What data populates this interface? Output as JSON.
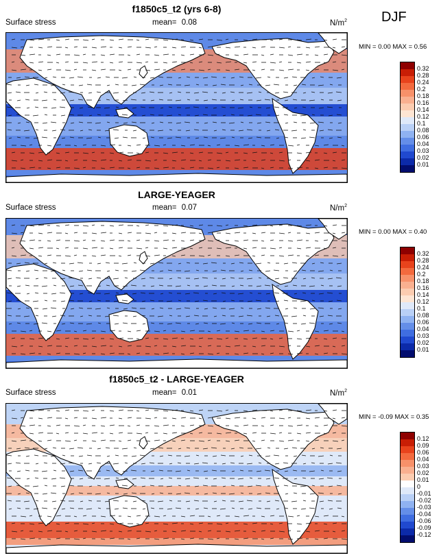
{
  "season": "DJF",
  "panels": [
    {
      "title": "f1850c5_t2 (yrs 6-8)",
      "variable": "Surface stress",
      "mean_label": "mean=",
      "mean_value": "0.08",
      "unit": "N/m",
      "unit_exp": "2",
      "minmax": "MIN =  0.00 MAX =  0.56",
      "levels": [
        "0.32",
        "0.28",
        "0.24",
        "0.2",
        "0.18",
        "0.16",
        "0.14",
        "0.12",
        "0.1",
        "0.08",
        "0.06",
        "0.04",
        "0.03",
        "0.02",
        "0.01"
      ],
      "colors": [
        "#8e0000",
        "#c81e05",
        "#e8431c",
        "#f36a3e",
        "#f7916a",
        "#f9b090",
        "#fbccb0",
        "#fde5d3",
        "#dfe9f9",
        "#b9d0f6",
        "#8fb2f1",
        "#648ee8",
        "#3f6de0",
        "#2049cf",
        "#0c2aa9",
        "#020d6e"
      ]
    },
    {
      "title": "LARGE-YEAGER",
      "variable": "Surface stress",
      "mean_label": "mean=",
      "mean_value": "0.07",
      "unit": "N/m",
      "unit_exp": "2",
      "minmax": "MIN =  0.00 MAX =  0.40",
      "levels": [
        "0.32",
        "0.28",
        "0.24",
        "0.2",
        "0.18",
        "0.16",
        "0.14",
        "0.12",
        "0.1",
        "0.08",
        "0.06",
        "0.04",
        "0.03",
        "0.02",
        "0.01"
      ],
      "colors": [
        "#8e0000",
        "#c81e05",
        "#e8431c",
        "#f36a3e",
        "#f7916a",
        "#f9b090",
        "#fbccb0",
        "#fde5d3",
        "#dfe9f9",
        "#b9d0f6",
        "#8fb2f1",
        "#648ee8",
        "#3f6de0",
        "#2049cf",
        "#0c2aa9",
        "#020d6e"
      ]
    },
    {
      "title": "f1850c5_t2 - LARGE-YEAGER",
      "variable": "Surface stress",
      "mean_label": "mean=",
      "mean_value": "0.01",
      "unit": "N/m",
      "unit_exp": "2",
      "minmax": "MIN = -0.09 MAX =  0.35",
      "levels": [
        "0.12",
        "0.09",
        "0.06",
        "0.04",
        "0.03",
        "0.02",
        "0.01",
        "0",
        "-0.01",
        "-0.02",
        "-0.03",
        "-0.04",
        "-0.06",
        "-0.09",
        "-0.12"
      ],
      "colors": [
        "#8e0000",
        "#c81e05",
        "#e8431c",
        "#f36a3e",
        "#f7916a",
        "#f9b090",
        "#fbccb0",
        "#ffffff",
        "#dfe9f9",
        "#b9d0f6",
        "#8fb2f1",
        "#648ee8",
        "#3f6de0",
        "#2049cf",
        "#0c2aa9",
        "#020d6e"
      ]
    }
  ]
}
